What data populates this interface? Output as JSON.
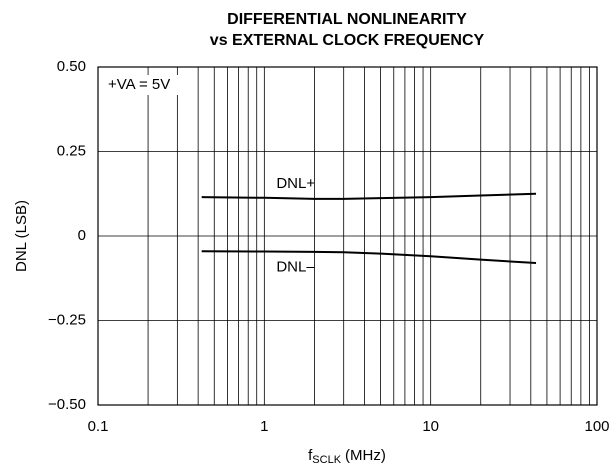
{
  "chart_data": {
    "type": "line",
    "title": [
      "DIFFERENTIAL NONLINEARITY",
      "vs EXTERNAL CLOCK FREQUENCY"
    ],
    "y_label": "DNL (LSB)",
    "x_label": "f",
    "x_label_sub": "SCLK",
    "x_label_unit": "(MHz)",
    "annotation": "+VA = 5V",
    "x": [
      0.42,
      1,
      2,
      3,
      5,
      10,
      20,
      43
    ],
    "series": [
      {
        "name": "DNL+",
        "color": "#000000",
        "values": [
          0.115,
          0.113,
          0.11,
          0.11,
          0.112,
          0.115,
          0.12,
          0.125
        ]
      },
      {
        "name": "DNL–",
        "color": "#000000",
        "values": [
          -0.045,
          -0.046,
          -0.047,
          -0.048,
          -0.052,
          -0.06,
          -0.07,
          -0.08
        ]
      }
    ],
    "xscale": "log",
    "xlim": [
      0.1,
      100
    ],
    "xticks": [
      0.1,
      1,
      10,
      100
    ],
    "xminorticks": [
      0.2,
      0.3,
      0.4,
      0.5,
      0.6,
      0.7,
      0.8,
      0.9,
      2,
      3,
      4,
      5,
      6,
      7,
      8,
      9,
      20,
      30,
      40,
      50,
      60,
      70,
      80,
      90
    ],
    "ylim": [
      -0.5,
      0.5
    ],
    "yticks": [
      {
        "value": -0.5,
        "label": "−0.50"
      },
      {
        "value": -0.25,
        "label": "−0.25"
      },
      0,
      0.25,
      {
        "value": 0.5,
        "label": "0.50"
      }
    ],
    "grid": true
  }
}
